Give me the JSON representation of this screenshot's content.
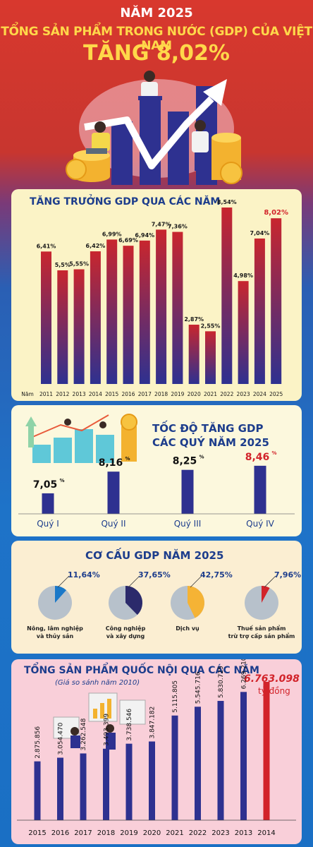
{
  "header": {
    "year": "NĂM 2025",
    "title": "TỔNG SẢN PHẨM TRONG NƯỚC (GDP) CỦA VIỆT NAM",
    "growth": "TĂNG 8,02%"
  },
  "colors": {
    "bar": "#2e3190",
    "bar_red_top": "#c8262e",
    "highlight": "#d2232a",
    "title": "#1d3d8c"
  },
  "section1": {
    "title": "TĂNG TRƯỞNG GDP QUA CÁC NĂM",
    "x_prefix": "Năm"
  },
  "section2": {
    "title_line1": "TỐC ĐỘ TĂNG GDP",
    "title_line2": "CÁC QUÝ NĂM 2025"
  },
  "section3": {
    "title": "CƠ CẤU GDP NĂM 2025"
  },
  "section4": {
    "title": "TỔNG SẢN PHẨM QUỐC NỘI QUA CÁC NĂM",
    "subtitle": "(Giá so sánh năm 2010)",
    "unit": "tỷ đồng"
  },
  "chart_data": [
    {
      "type": "bar",
      "title": "TĂNG TRƯỞNG GDP QUA CÁC NĂM",
      "categories": [
        "2011",
        "2012",
        "2013",
        "2014",
        "2015",
        "2016",
        "2017",
        "2018",
        "2019",
        "2020",
        "2021",
        "2022",
        "2023",
        "2024",
        "2025"
      ],
      "values": [
        6.41,
        5.5,
        5.55,
        6.42,
        6.99,
        6.69,
        6.94,
        7.47,
        7.36,
        2.87,
        2.55,
        8.54,
        4.98,
        7.04,
        8.02
      ],
      "labels": [
        "6,41%",
        "5,5%",
        "5,55%",
        "6,42%",
        "6,99%",
        "6,69%",
        "6,94%",
        "7,47%",
        "7,36%",
        "2,87%",
        "2,55%",
        "8,54%",
        "4,98%",
        "7,04%",
        "8,02%"
      ],
      "ylim": [
        0,
        8.54
      ]
    },
    {
      "type": "bar",
      "title": "TỐC ĐỘ TĂNG GDP CÁC QUÝ NĂM 2025",
      "categories": [
        "Quý I",
        "Quý II",
        "Quý III",
        "Quý IV"
      ],
      "values": [
        7.05,
        8.16,
        8.25,
        8.46
      ],
      "labels": [
        "7,05",
        "8,16",
        "8,25",
        "8,46"
      ],
      "unit": "%",
      "ylim": [
        6,
        8.6
      ]
    },
    {
      "type": "pie",
      "title": "CƠ CẤU GDP NĂM 2025",
      "items": [
        {
          "label": "11,64%",
          "value": 11.64,
          "name": "Nông, lâm nghiệp và thủy sản",
          "name_l1": "Nông, lâm nghiệp",
          "name_l2": "và thủy sản",
          "color": "#1a78c8"
        },
        {
          "label": "37,65%",
          "value": 37.65,
          "name": "Công nghiệp và xây dựng",
          "name_l1": "Công nghiệp",
          "name_l2": "và xây dựng",
          "color": "#2b2a6b"
        },
        {
          "label": "42,75%",
          "value": 42.75,
          "name": "Dịch vụ",
          "name_l1": "Dịch vụ",
          "name_l2": "",
          "color": "#f5b335"
        },
        {
          "label": "7,96%",
          "value": 7.96,
          "name": "Thuế sản phẩm trừ trợ cấp sản phẩm",
          "name_l1": "Thuế sản phẩm",
          "name_l2": "trừ trợ cấp sản phẩm",
          "color": "#d2232a"
        }
      ]
    },
    {
      "type": "bar",
      "title": "TỔNG SẢN PHẨM QUỐC NỘI QUA CÁC NĂM",
      "subtitle": "(Giá so sánh năm 2010)",
      "categories": [
        "2015",
        "2016",
        "2017",
        "2018",
        "2019",
        "2020",
        "2021",
        "2022",
        "2023",
        "2013",
        "2014"
      ],
      "values": [
        2875856,
        3054470,
        3262548,
        3493399,
        3738546,
        3847182,
        5115805,
        5545716,
        5830725,
        6269210,
        6763098
      ],
      "labels": [
        "2.875.856",
        "3.054.470",
        "3.262.548",
        "3.493.399",
        "3.738.546",
        "3.847.182",
        "5.115.805",
        "5.545.716",
        "5.830.725",
        "6.269.210",
        "6.763.098"
      ],
      "unit": "tỷ đồng"
    }
  ]
}
